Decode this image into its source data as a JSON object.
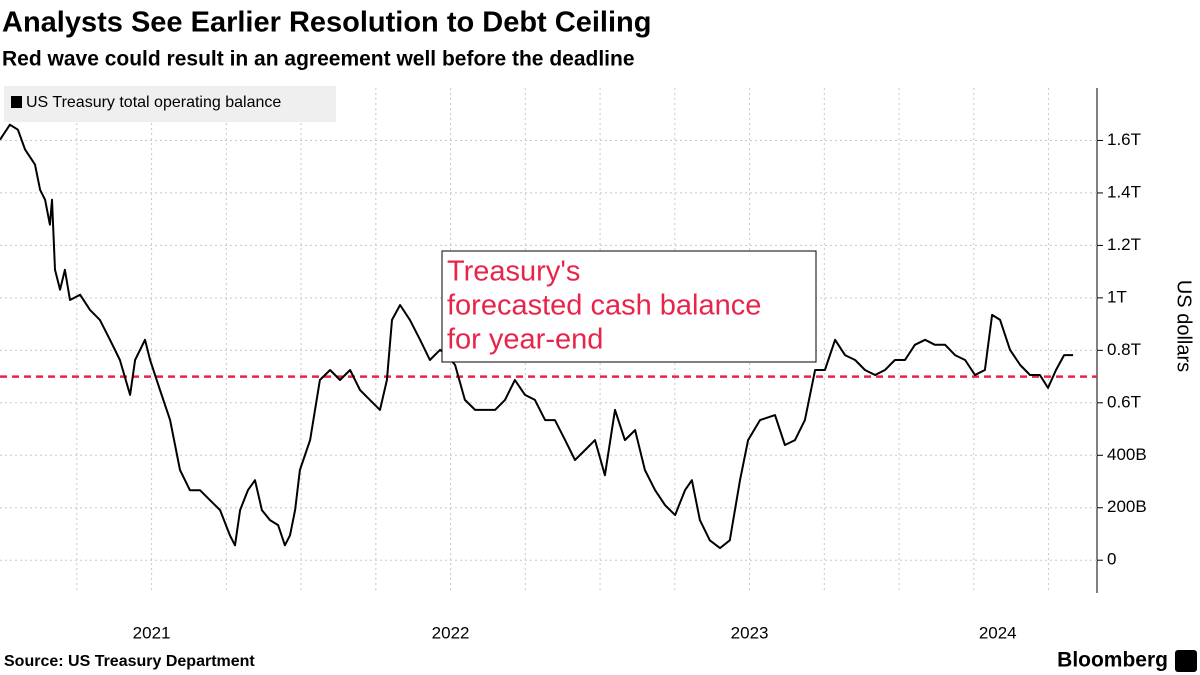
{
  "chart_data": {
    "type": "line",
    "title": "Analysts See Earlier Resolution to Debt Ceiling",
    "subtitle": "Red wave could result in an agreement well before the deadline",
    "y_label": "US dollars",
    "source": "Source: US Treasury Department",
    "brand": "Bloomberg",
    "annotation": {
      "lines": [
        "Treasury's",
        "forecasted cash balance",
        "for year-end"
      ],
      "color": "#e8244a"
    },
    "reference_line": {
      "value": 700,
      "color": "#e8244a"
    },
    "x": [
      2020.993,
      2021.026,
      2021.053,
      2021.077,
      2021.11,
      2021.127,
      2021.144,
      2021.16,
      2021.167,
      2021.177,
      2021.194,
      2021.21,
      2021.227,
      2021.261,
      2021.294,
      2021.327,
      2021.361,
      2021.394,
      2021.428,
      2021.445,
      2021.478,
      2021.495,
      2021.528,
      2021.562,
      2021.595,
      2021.628,
      2021.662,
      2021.695,
      2021.729,
      2021.762,
      2021.779,
      2021.796,
      2021.822,
      2021.846,
      2021.869,
      2021.896,
      2021.923,
      2021.946,
      2021.963,
      2021.98,
      2021.996,
      2022.03,
      2022.063,
      2022.097,
      2022.13,
      2022.164,
      2022.197,
      2022.23,
      2022.264,
      2022.287,
      2022.304,
      2022.331,
      2022.364,
      2022.398,
      2022.431,
      2022.465,
      2022.488,
      2022.515,
      2022.548,
      2022.582,
      2022.615,
      2022.649,
      2022.682,
      2022.715,
      2022.749,
      2022.782,
      2022.816,
      2022.849,
      2022.883,
      2022.916,
      2022.95,
      2022.983,
      2023.016,
      2023.05,
      2023.083,
      2023.117,
      2023.15,
      2023.184,
      2023.217,
      2023.251,
      2023.284,
      2023.307,
      2023.334,
      2023.367,
      2023.401,
      2023.434,
      2023.468,
      2023.495,
      2023.535,
      2023.585,
      2023.618,
      2023.652,
      2023.685,
      2023.719,
      2023.752,
      2023.786,
      2023.819,
      2023.853,
      2023.886,
      2023.92,
      2023.953,
      2023.986,
      2024.02,
      2024.053,
      2024.087,
      2024.12,
      2024.154,
      2024.187,
      2024.221,
      2024.254,
      2024.287,
      2024.311,
      2024.338,
      2024.371,
      2024.405,
      2024.438,
      2024.471,
      2024.498,
      2024.525,
      2024.552,
      2024.582
    ],
    "series": [
      {
        "name": "US Treasury total operating balance",
        "color": "#000000",
        "values": [
          1603,
          1660,
          1641,
          1565,
          1508,
          1412,
          1374,
          1279,
          1374,
          1107,
          1031,
          1107,
          992,
          1012,
          954,
          916,
          840,
          763,
          630,
          763,
          840,
          763,
          649,
          534,
          344,
          267,
          267,
          229,
          191,
          95,
          57,
          191,
          267,
          305,
          191,
          153,
          134,
          57,
          95,
          191,
          344,
          458,
          687,
          725,
          687,
          725,
          649,
          611,
          573,
          687,
          916,
          973,
          916,
          840,
          763,
          802,
          782,
          744,
          611,
          573,
          573,
          573,
          611,
          687,
          630,
          611,
          534,
          534,
          458,
          382,
          420,
          458,
          324,
          573,
          458,
          496,
          344,
          267,
          210,
          172,
          267,
          305,
          153,
          76,
          46,
          76,
          305,
          458,
          534,
          553,
          439,
          458,
          534,
          725,
          725,
          840,
          782,
          763,
          725,
          706,
          725,
          763,
          763,
          821,
          840,
          821,
          821,
          782,
          763,
          706,
          725,
          935,
          916,
          802,
          744,
          706,
          706,
          657,
          725,
          782,
          782
        ]
      }
    ],
    "xlim": [
      2020.993,
      2024.662
    ],
    "xticks": [
      {
        "value": 2021.5,
        "label": "2021"
      },
      {
        "value": 2022.5,
        "label": "2022"
      },
      {
        "value": 2023.5,
        "label": "2023"
      },
      {
        "value": 2024.33,
        "label": "2024"
      }
    ],
    "xgrid": [
      2021.25,
      2021.5,
      2021.75,
      2022,
      2022.25,
      2022.5,
      2022.75,
      2023,
      2023.25,
      2023.5,
      2023.75,
      2024,
      2024.25,
      2024.5
    ],
    "ylim": [
      -125,
      1800
    ],
    "yticks": [
      0,
      {
        "value": 200,
        "label": "200B"
      },
      {
        "value": 400,
        "label": "400B"
      },
      {
        "value": 600,
        "label": "0.6T"
      },
      {
        "value": 800,
        "label": "0.8T"
      },
      {
        "value": 1000,
        "label": "1T"
      },
      {
        "value": 1200,
        "label": "1.2T"
      },
      {
        "value": 1400,
        "label": "1.4T"
      },
      {
        "value": 1600,
        "label": "1.6T"
      }
    ],
    "grid": true
  }
}
